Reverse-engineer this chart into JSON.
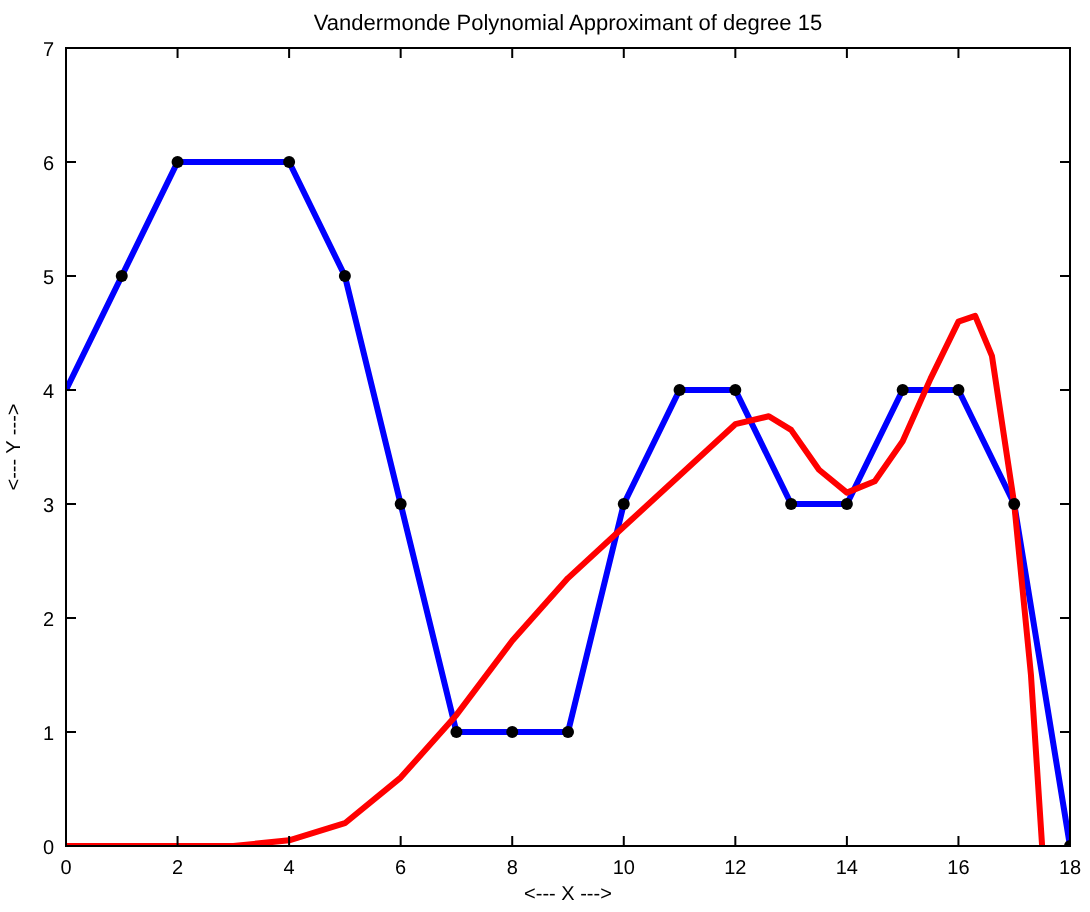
{
  "chart_data": {
    "type": "line",
    "title": "Vandermonde Polynomial Approximant of degree 15",
    "xlabel": "<--- X --->",
    "ylabel": "<--- Y --->",
    "xlim": [
      0,
      18
    ],
    "ylim": [
      0,
      7
    ],
    "xticks": [
      0,
      2,
      4,
      6,
      8,
      10,
      12,
      14,
      16,
      18
    ],
    "yticks": [
      0,
      1,
      2,
      3,
      4,
      5,
      6,
      7
    ],
    "grid": false,
    "series": [
      {
        "color": "#0000ff",
        "x": [
          0,
          1,
          2,
          4,
          5,
          6,
          7,
          8,
          9,
          10,
          11,
          12,
          13,
          14,
          15,
          16,
          17,
          18
        ],
        "values": [
          4,
          5,
          6,
          6,
          5,
          3,
          1,
          1,
          1,
          3,
          4,
          4,
          3,
          3,
          4,
          4,
          3,
          0
        ]
      },
      {
        "color": "#ff0000",
        "x": [
          0,
          3,
          4,
          5,
          6,
          7,
          8,
          9,
          10,
          11,
          12,
          12.6,
          13,
          13.5,
          14,
          14.5,
          15,
          15.5,
          16,
          16.3,
          16.6,
          17,
          17.3,
          17.5
        ],
        "values": [
          0,
          0,
          0.05,
          0.2,
          0.6,
          1.15,
          1.8,
          2.35,
          2.8,
          3.25,
          3.7,
          3.77,
          3.65,
          3.3,
          3.1,
          3.2,
          3.55,
          4.1,
          4.6,
          4.65,
          4.3,
          3.0,
          1.5,
          0
        ]
      },
      {
        "type": "scatter",
        "color": "#000000",
        "marker": "circle",
        "x": [
          1,
          2,
          4,
          5,
          6,
          7,
          8,
          9,
          10,
          11,
          12,
          13,
          14,
          15,
          16,
          17,
          18
        ],
        "values": [
          5,
          6,
          6,
          5,
          3,
          1,
          1,
          1,
          3,
          4,
          4,
          3,
          3,
          4,
          4,
          3,
          0
        ]
      }
    ]
  }
}
